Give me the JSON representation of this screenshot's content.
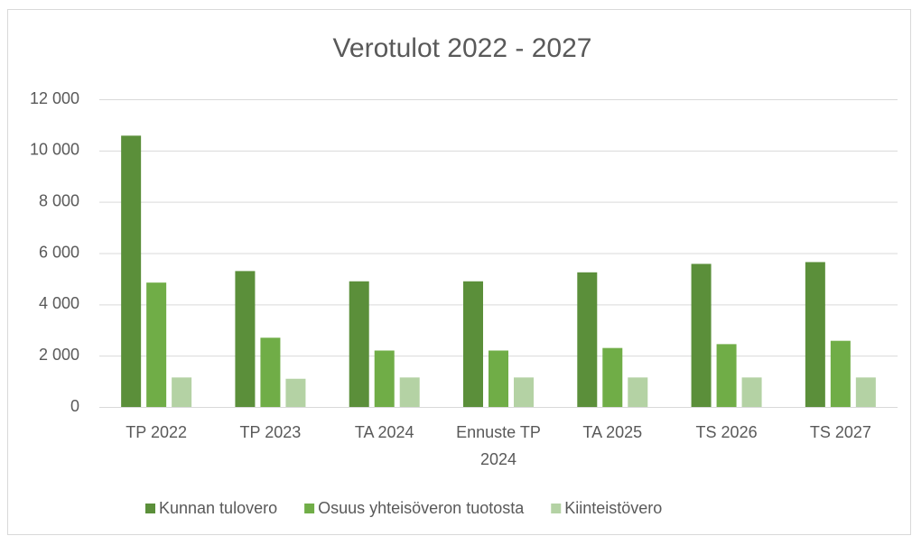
{
  "chart_data": {
    "type": "bar",
    "title": "Verotulot 2022 - 2027",
    "categories": [
      "TP 2022",
      "TP 2023",
      "TA 2024",
      "Ennuste TP 2024",
      "TA 2025",
      "TS 2026",
      "TS 2027"
    ],
    "series": [
      {
        "name": "Kunnan tulovero",
        "color": "#5b8f3a",
        "values": [
          10580,
          5300,
          4900,
          4900,
          5250,
          5580,
          5650
        ]
      },
      {
        "name": "Osuus yhteisöveron tuotosta",
        "color": "#70ad47",
        "values": [
          4850,
          2700,
          2200,
          2200,
          2300,
          2450,
          2580
        ]
      },
      {
        "name": "Kiinteistövero",
        "color": "#b4d2a4",
        "values": [
          1150,
          1100,
          1150,
          1150,
          1150,
          1150,
          1150
        ]
      }
    ],
    "ylim": [
      0,
      12000
    ],
    "yticks": [
      0,
      {
        "value": 2000,
        "label": "2 000"
      },
      {
        "value": 4000,
        "label": "4 000"
      },
      {
        "value": 6000,
        "label": "6 000"
      },
      {
        "value": 8000,
        "label": "8 000"
      },
      {
        "value": 10000,
        "label": "10 000"
      },
      {
        "value": 12000,
        "label": "12 000"
      }
    ],
    "grid": true,
    "legend": "bottom"
  }
}
